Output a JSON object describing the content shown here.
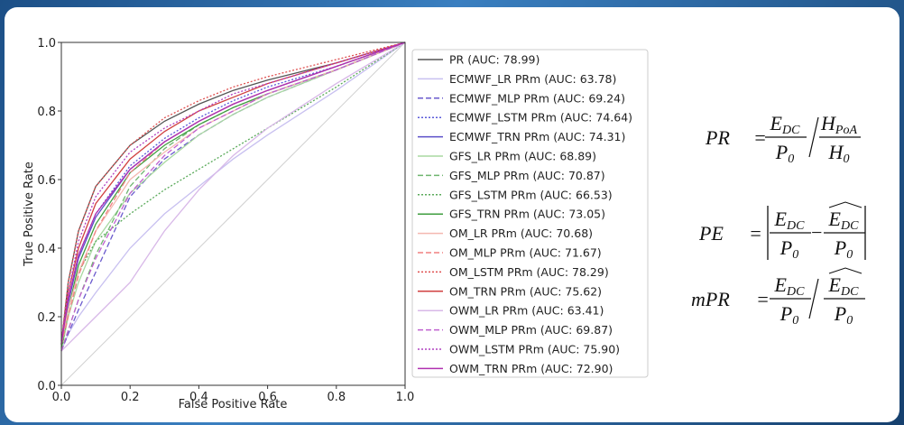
{
  "chart_data": {
    "type": "line",
    "x_label": "False Positive Rate",
    "y_label": "True Positive Rate",
    "x": [
      0,
      0.02,
      0.05,
      0.1,
      0.2,
      0.3,
      0.4,
      0.5,
      0.6,
      0.8,
      1.0
    ],
    "xlim": [
      0,
      1
    ],
    "ylim": [
      0,
      1
    ],
    "xticks": [
      {
        "value": 0,
        "label": "0.0"
      },
      0.2,
      0.4,
      0.6,
      0.8,
      {
        "value": 1,
        "label": "1.0"
      }
    ],
    "yticks": [
      {
        "value": 0,
        "label": "0.0"
      },
      0.2,
      0.4,
      0.6,
      0.8,
      {
        "value": 1,
        "label": "1.0"
      }
    ],
    "legend": "right",
    "series": [
      {
        "name": "PR (AUC: 78.99)",
        "color": "#555555",
        "style": "solid",
        "values": [
          0.12,
          0.3,
          0.45,
          0.58,
          0.7,
          0.77,
          0.82,
          0.86,
          0.89,
          0.94,
          1.0
        ]
      },
      {
        "name": "ECMWF_LR PRm (AUC: 63.78)",
        "color": "#c8c0f0",
        "style": "solid",
        "values": [
          0.1,
          0.15,
          0.2,
          0.27,
          0.4,
          0.5,
          0.58,
          0.66,
          0.73,
          0.86,
          1.0
        ]
      },
      {
        "name": "ECMWF_MLP PRm (AUC: 69.24)",
        "color": "#6a5acd",
        "style": "dashed",
        "values": [
          0.1,
          0.15,
          0.22,
          0.33,
          0.55,
          0.66,
          0.73,
          0.79,
          0.84,
          0.92,
          1.0
        ]
      },
      {
        "name": "ECMWF_LSTM PRm (AUC: 74.64)",
        "color": "#5a5ad8",
        "style": "dotted",
        "values": [
          0.12,
          0.25,
          0.38,
          0.5,
          0.64,
          0.72,
          0.78,
          0.83,
          0.87,
          0.93,
          1.0
        ]
      },
      {
        "name": "ECMWF_TRN PRm (AUC: 74.31)",
        "color": "#5b4fc9",
        "style": "solid",
        "values": [
          0.12,
          0.24,
          0.37,
          0.49,
          0.63,
          0.71,
          0.77,
          0.82,
          0.86,
          0.93,
          1.0
        ]
      },
      {
        "name": "GFS_LR PRm (AUC: 68.89)",
        "color": "#a8d8a0",
        "style": "solid",
        "values": [
          0.1,
          0.2,
          0.3,
          0.42,
          0.56,
          0.65,
          0.73,
          0.79,
          0.84,
          0.92,
          1.0
        ]
      },
      {
        "name": "GFS_MLP PRm (AUC: 70.87)",
        "color": "#6fb56f",
        "style": "dashed",
        "values": [
          0.1,
          0.16,
          0.25,
          0.38,
          0.58,
          0.69,
          0.76,
          0.81,
          0.85,
          0.92,
          1.0
        ]
      },
      {
        "name": "GFS_LSTM PRm (AUC: 66.53)",
        "color": "#5aaa5a",
        "style": "dotted",
        "values": [
          0.1,
          0.22,
          0.33,
          0.42,
          0.5,
          0.57,
          0.63,
          0.69,
          0.75,
          0.87,
          1.0
        ]
      },
      {
        "name": "GFS_TRN PRm (AUC: 73.05)",
        "color": "#3f9e3f",
        "style": "solid",
        "values": [
          0.11,
          0.22,
          0.35,
          0.47,
          0.62,
          0.7,
          0.76,
          0.81,
          0.85,
          0.92,
          1.0
        ]
      },
      {
        "name": "OM_LR PRm (AUC: 70.68)",
        "color": "#f4b8b0",
        "style": "solid",
        "values": [
          0.12,
          0.22,
          0.33,
          0.45,
          0.6,
          0.68,
          0.75,
          0.8,
          0.85,
          0.92,
          1.0
        ]
      },
      {
        "name": "OM_MLP PRm (AUC: 71.67)",
        "color": "#f08080",
        "style": "dashed",
        "values": [
          0.12,
          0.2,
          0.32,
          0.45,
          0.62,
          0.71,
          0.77,
          0.82,
          0.86,
          0.93,
          1.0
        ]
      },
      {
        "name": "OM_LSTM PRm (AUC: 78.29)",
        "color": "#e05050",
        "style": "dotted",
        "values": [
          0.13,
          0.3,
          0.45,
          0.58,
          0.7,
          0.78,
          0.83,
          0.87,
          0.9,
          0.95,
          1.0
        ]
      },
      {
        "name": "OM_TRN PRm (AUC: 75.62)",
        "color": "#d04040",
        "style": "solid",
        "values": [
          0.12,
          0.27,
          0.4,
          0.53,
          0.66,
          0.74,
          0.8,
          0.84,
          0.88,
          0.94,
          1.0
        ]
      },
      {
        "name": "OWM_LR PRm (AUC: 63.41)",
        "color": "#d8b8e8",
        "style": "solid",
        "values": [
          0.1,
          0.12,
          0.15,
          0.2,
          0.3,
          0.45,
          0.57,
          0.67,
          0.75,
          0.88,
          1.0
        ]
      },
      {
        "name": "OWM_MLP PRm (AUC: 69.87)",
        "color": "#c060d0",
        "style": "dashed",
        "values": [
          0.1,
          0.16,
          0.25,
          0.37,
          0.56,
          0.67,
          0.75,
          0.8,
          0.85,
          0.92,
          1.0
        ]
      },
      {
        "name": "OWM_LSTM PRm (AUC: 75.90)",
        "color": "#b040c0",
        "style": "dotted",
        "values": [
          0.13,
          0.27,
          0.42,
          0.55,
          0.68,
          0.75,
          0.8,
          0.85,
          0.88,
          0.94,
          1.0
        ]
      },
      {
        "name": "OWM_TRN PRm (AUC: 72.90)",
        "color": "#b030b0",
        "style": "solid",
        "values": [
          0.12,
          0.25,
          0.38,
          0.5,
          0.63,
          0.71,
          0.77,
          0.82,
          0.86,
          0.93,
          1.0
        ]
      }
    ]
  },
  "equations": [
    {
      "lhs": "PR",
      "sign": "=",
      "terms": [
        {
          "num": "E",
          "num_sub": "DC",
          "den": "P",
          "den_sub": "0"
        },
        {
          "num": "H",
          "num_sub": "PoA",
          "den": "H",
          "den_sub": "0"
        }
      ]
    },
    {
      "lhs": "PE",
      "sign": "=",
      "op": "−",
      "terms": [
        {
          "num": "E",
          "num_sub": "DC",
          "den": "P",
          "den_sub": "0"
        },
        {
          "num": "E",
          "num_sub": "DC",
          "den": "P",
          "den_sub": "0"
        }
      ]
    },
    {
      "lhs": "mPR",
      "sign": "=",
      "terms": [
        {
          "num": "E",
          "num_sub": "DC",
          "den": "P",
          "den_sub": "0"
        },
        {
          "num": "E",
          "num_sub": "DC",
          "den": "P",
          "den_sub": "0"
        }
      ]
    }
  ]
}
